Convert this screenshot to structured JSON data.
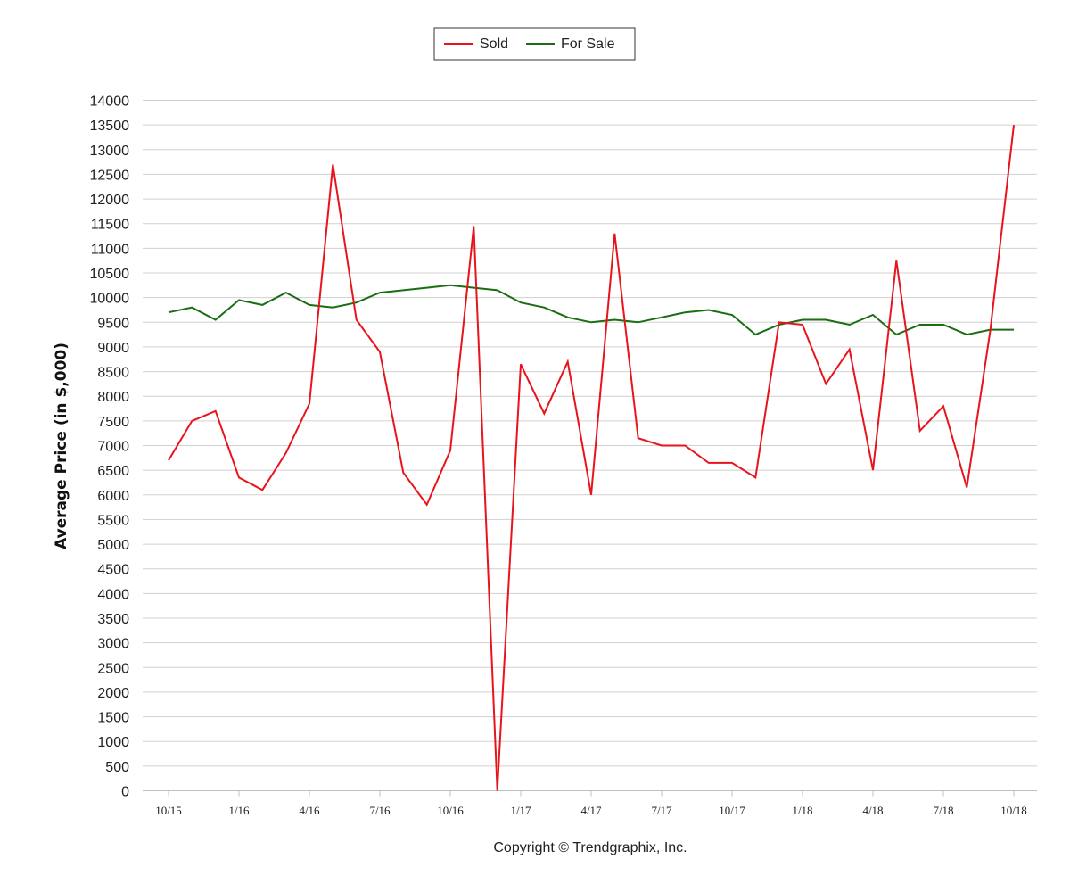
{
  "chart_data": {
    "type": "line",
    "ylabel": "Average Price (in $,000)",
    "ylim": [
      0,
      14000
    ],
    "ytick_step": 500,
    "grid": true,
    "legend_position": "top-center",
    "footer": "Copyright © Trendgraphix, Inc.",
    "x": [
      "10/15",
      "11/15",
      "12/15",
      "1/16",
      "2/16",
      "3/16",
      "4/16",
      "5/16",
      "6/16",
      "7/16",
      "8/16",
      "9/16",
      "10/16",
      "11/16",
      "12/16",
      "1/17",
      "2/17",
      "3/17",
      "4/17",
      "5/17",
      "6/17",
      "7/17",
      "8/17",
      "9/17",
      "10/17",
      "11/17",
      "12/17",
      "1/18",
      "2/18",
      "3/18",
      "4/18",
      "5/18",
      "6/18",
      "7/18",
      "8/18",
      "9/18",
      "10/18"
    ],
    "x_tick_labels": [
      "10/15",
      "1/16",
      "4/16",
      "7/16",
      "10/16",
      "1/17",
      "4/17",
      "7/17",
      "10/17",
      "1/18",
      "4/18",
      "7/18",
      "10/18"
    ],
    "series": [
      {
        "name": "Sold",
        "color": "#e8141c",
        "values": [
          6700,
          7500,
          7700,
          6350,
          6100,
          6850,
          7850,
          12700,
          9550,
          8900,
          6450,
          5800,
          6900,
          11450,
          0,
          8650,
          7650,
          8700,
          6000,
          11300,
          7150,
          7000,
          7000,
          6650,
          6650,
          6350,
          9500,
          9450,
          8250,
          8950,
          6500,
          10750,
          7300,
          7800,
          6150,
          9350,
          13500
        ]
      },
      {
        "name": "For Sale",
        "color": "#1a6e12",
        "values": [
          9700,
          9800,
          9550,
          9950,
          9850,
          10100,
          9850,
          9800,
          9900,
          10100,
          10150,
          10200,
          10250,
          10200,
          10150,
          9900,
          9800,
          9600,
          9500,
          9550,
          9500,
          9600,
          9700,
          9750,
          9650,
          9250,
          9450,
          9550,
          9550,
          9450,
          9650,
          9250,
          9450,
          9450,
          9250,
          9350,
          9350
        ]
      }
    ]
  }
}
